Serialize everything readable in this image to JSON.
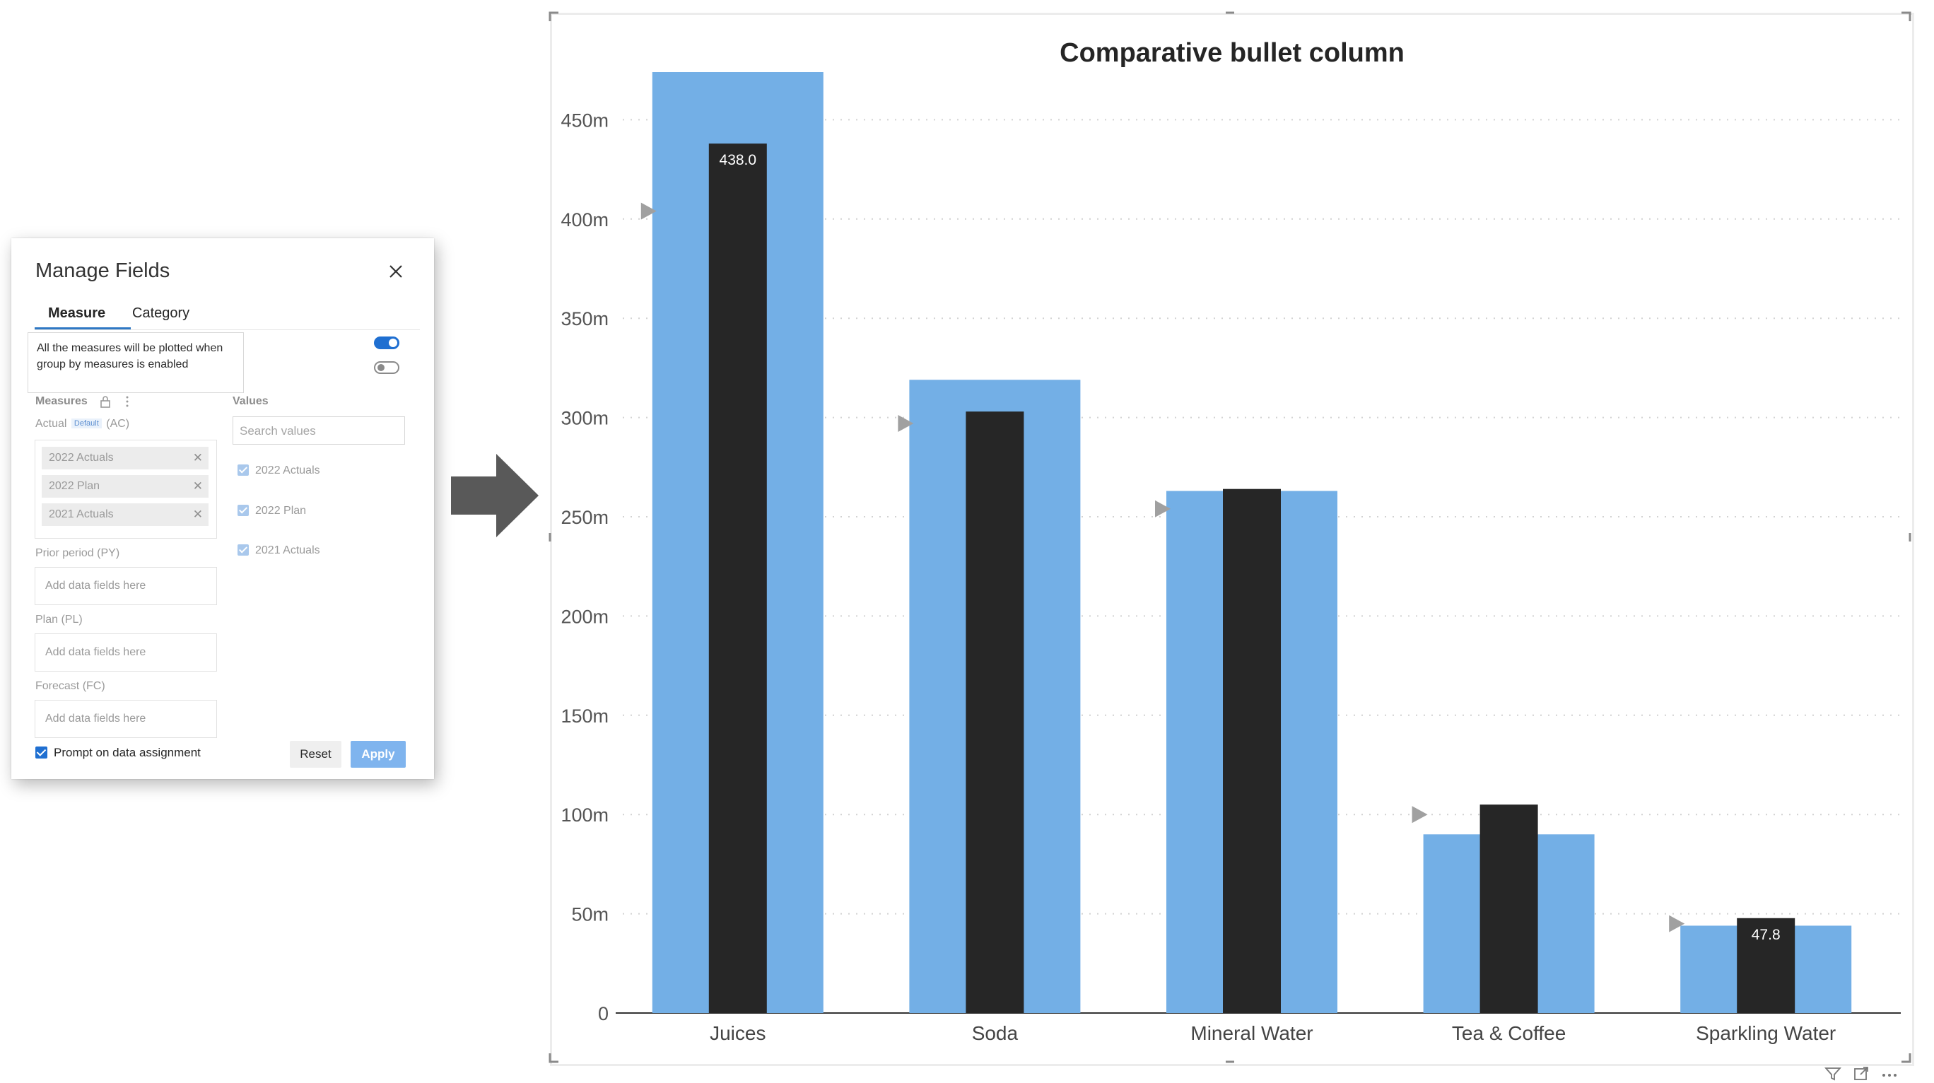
{
  "panel": {
    "title": "Manage Fields",
    "tabs": [
      {
        "label": "Measure",
        "active": true
      },
      {
        "label": "Category",
        "active": false
      }
    ],
    "tooltip": "All the measures will be plotted when group by measures is enabled",
    "toggles": [
      true,
      false
    ],
    "measures_label": "Measures",
    "values_label": "Values",
    "actual_label_pre": "Actual",
    "actual_badge": "Default",
    "actual_label_post": "(AC)",
    "actual_chips": [
      "2022 Actuals",
      "2022 Plan",
      "2021 Actuals"
    ],
    "prior_label": "Prior period  (PY)",
    "plan_label": "Plan  (PL)",
    "forecast_label": "Forecast  (FC)",
    "drop_placeholder": "Add data fields here",
    "search_placeholder": "Search values",
    "values": [
      "2022 Actuals",
      "2022 Plan",
      "2021 Actuals"
    ],
    "prompt_label": "Prompt on data assignment",
    "reset_label": "Reset",
    "apply_label": "Apply"
  },
  "colors": {
    "actual_bar": "#262626",
    "comparison_bar": "#73afe6",
    "marker": "#a0a0a0",
    "accent": "#1f6fd1"
  },
  "chart_data": {
    "type": "bar",
    "title": "Comparative bullet column",
    "xlabel": "",
    "ylabel": "",
    "categories": [
      "Juices",
      "Soda",
      "Mineral Water",
      "Tea & Coffee",
      "Sparkling Water"
    ],
    "series": [
      {
        "name": "2022 Actuals",
        "role": "actual",
        "values": [
          438.0,
          303,
          264,
          105,
          47.8
        ]
      },
      {
        "name": "2022 Plan",
        "role": "comparison",
        "values": [
          474,
          319,
          263,
          90,
          44
        ]
      },
      {
        "name": "2021 Actuals",
        "role": "marker",
        "values": [
          404,
          297,
          254,
          100,
          45
        ]
      }
    ],
    "data_labels": [
      "438.0",
      "",
      "",
      "",
      "47.8"
    ],
    "ylim": [
      0,
      475
    ],
    "y_ticks": [
      0,
      50,
      100,
      150,
      200,
      250,
      300,
      350,
      400,
      450
    ],
    "y_tick_labels": [
      "0",
      "50m",
      "100m",
      "150m",
      "200m",
      "250m",
      "300m",
      "350m",
      "400m",
      "450m"
    ],
    "grid": true
  }
}
